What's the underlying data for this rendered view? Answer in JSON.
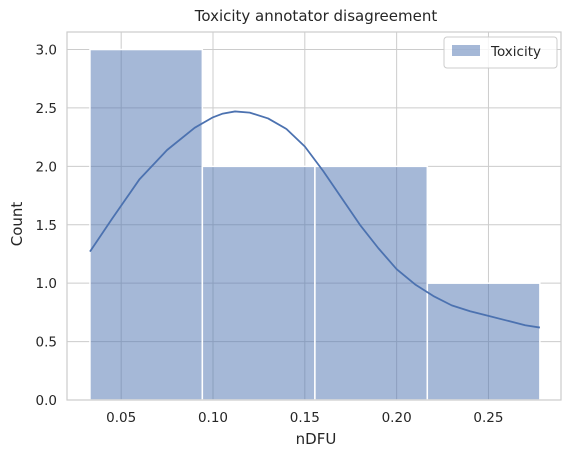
{
  "chart_data": {
    "type": "bar",
    "subtype": "histogram-with-kde",
    "title": "Toxicity annotator disagreement",
    "xlabel": "nDFU",
    "ylabel": "Count",
    "xlim": [
      0.0205,
      0.2895
    ],
    "ylim": [
      0,
      3.15
    ],
    "xticks": [
      0.05,
      0.1,
      0.15,
      0.2,
      0.25
    ],
    "xtick_labels": [
      "0.05",
      "0.10",
      "0.15",
      "0.20",
      "0.25"
    ],
    "yticks": [
      0,
      0.5,
      1.0,
      1.5,
      2.0,
      2.5,
      3.0
    ],
    "ytick_labels": [
      "0.0",
      "0.5",
      "1.0",
      "1.5",
      "2.0",
      "2.5",
      "3.0"
    ],
    "grid": true,
    "legend_position": "top-right",
    "bins": [
      {
        "x0": 0.033,
        "x1": 0.0942,
        "count": 3
      },
      {
        "x0": 0.0942,
        "x1": 0.1555,
        "count": 2
      },
      {
        "x0": 0.1555,
        "x1": 0.2167,
        "count": 2
      },
      {
        "x0": 0.2167,
        "x1": 0.278,
        "count": 1
      }
    ],
    "series": [
      {
        "name": "Toxicity",
        "color": "#4c72b0",
        "kde": {
          "x": [
            0.033,
            0.045,
            0.06,
            0.075,
            0.09,
            0.1,
            0.105,
            0.112,
            0.12,
            0.13,
            0.14,
            0.15,
            0.16,
            0.17,
            0.18,
            0.19,
            0.2,
            0.21,
            0.22,
            0.23,
            0.24,
            0.25,
            0.26,
            0.27,
            0.278
          ],
          "y": [
            1.27,
            1.55,
            1.89,
            2.14,
            2.33,
            2.42,
            2.45,
            2.47,
            2.46,
            2.41,
            2.32,
            2.17,
            1.96,
            1.73,
            1.5,
            1.3,
            1.12,
            0.99,
            0.89,
            0.81,
            0.76,
            0.72,
            0.68,
            0.64,
            0.62
          ]
        }
      }
    ]
  },
  "legend": {
    "label": "Toxicity"
  }
}
